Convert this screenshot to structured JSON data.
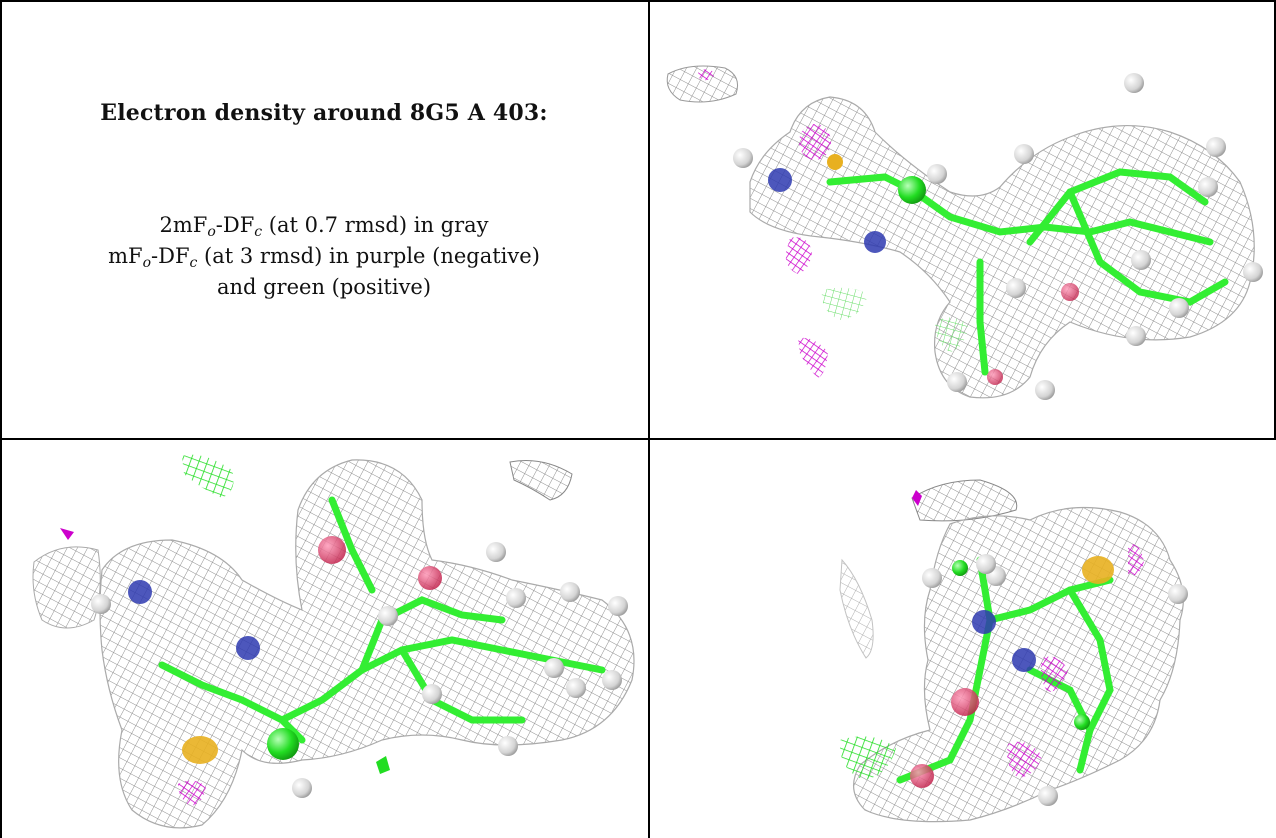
{
  "caption": {
    "title": "Electron density around 8G5 A 403:",
    "line1": {
      "pre": "2mF",
      "sub1": "o",
      "mid": "-DF",
      "sub2": "c",
      "post": " (at 0.7 rmsd) in gray"
    },
    "line2": {
      "pre": "mF",
      "sub1": "o",
      "mid": "-DF",
      "sub2": "c",
      "post": " (at 3 rmsd) in purple (negative)"
    },
    "line3": "and green (positive)"
  },
  "colors": {
    "mesh_gray": "#9a9a9a",
    "mesh_negative": "#d000d0",
    "mesh_positive": "#22dd22",
    "carbon": "#33ee33",
    "nitrogen": "#3333bb",
    "oxygen": "#e0406a",
    "sulfur": "#e8b020",
    "hydrogen": "#e6e6e6"
  },
  "panels": [
    {
      "name": "view-top-right"
    },
    {
      "name": "view-bottom-left"
    },
    {
      "name": "view-bottom-right"
    }
  ]
}
